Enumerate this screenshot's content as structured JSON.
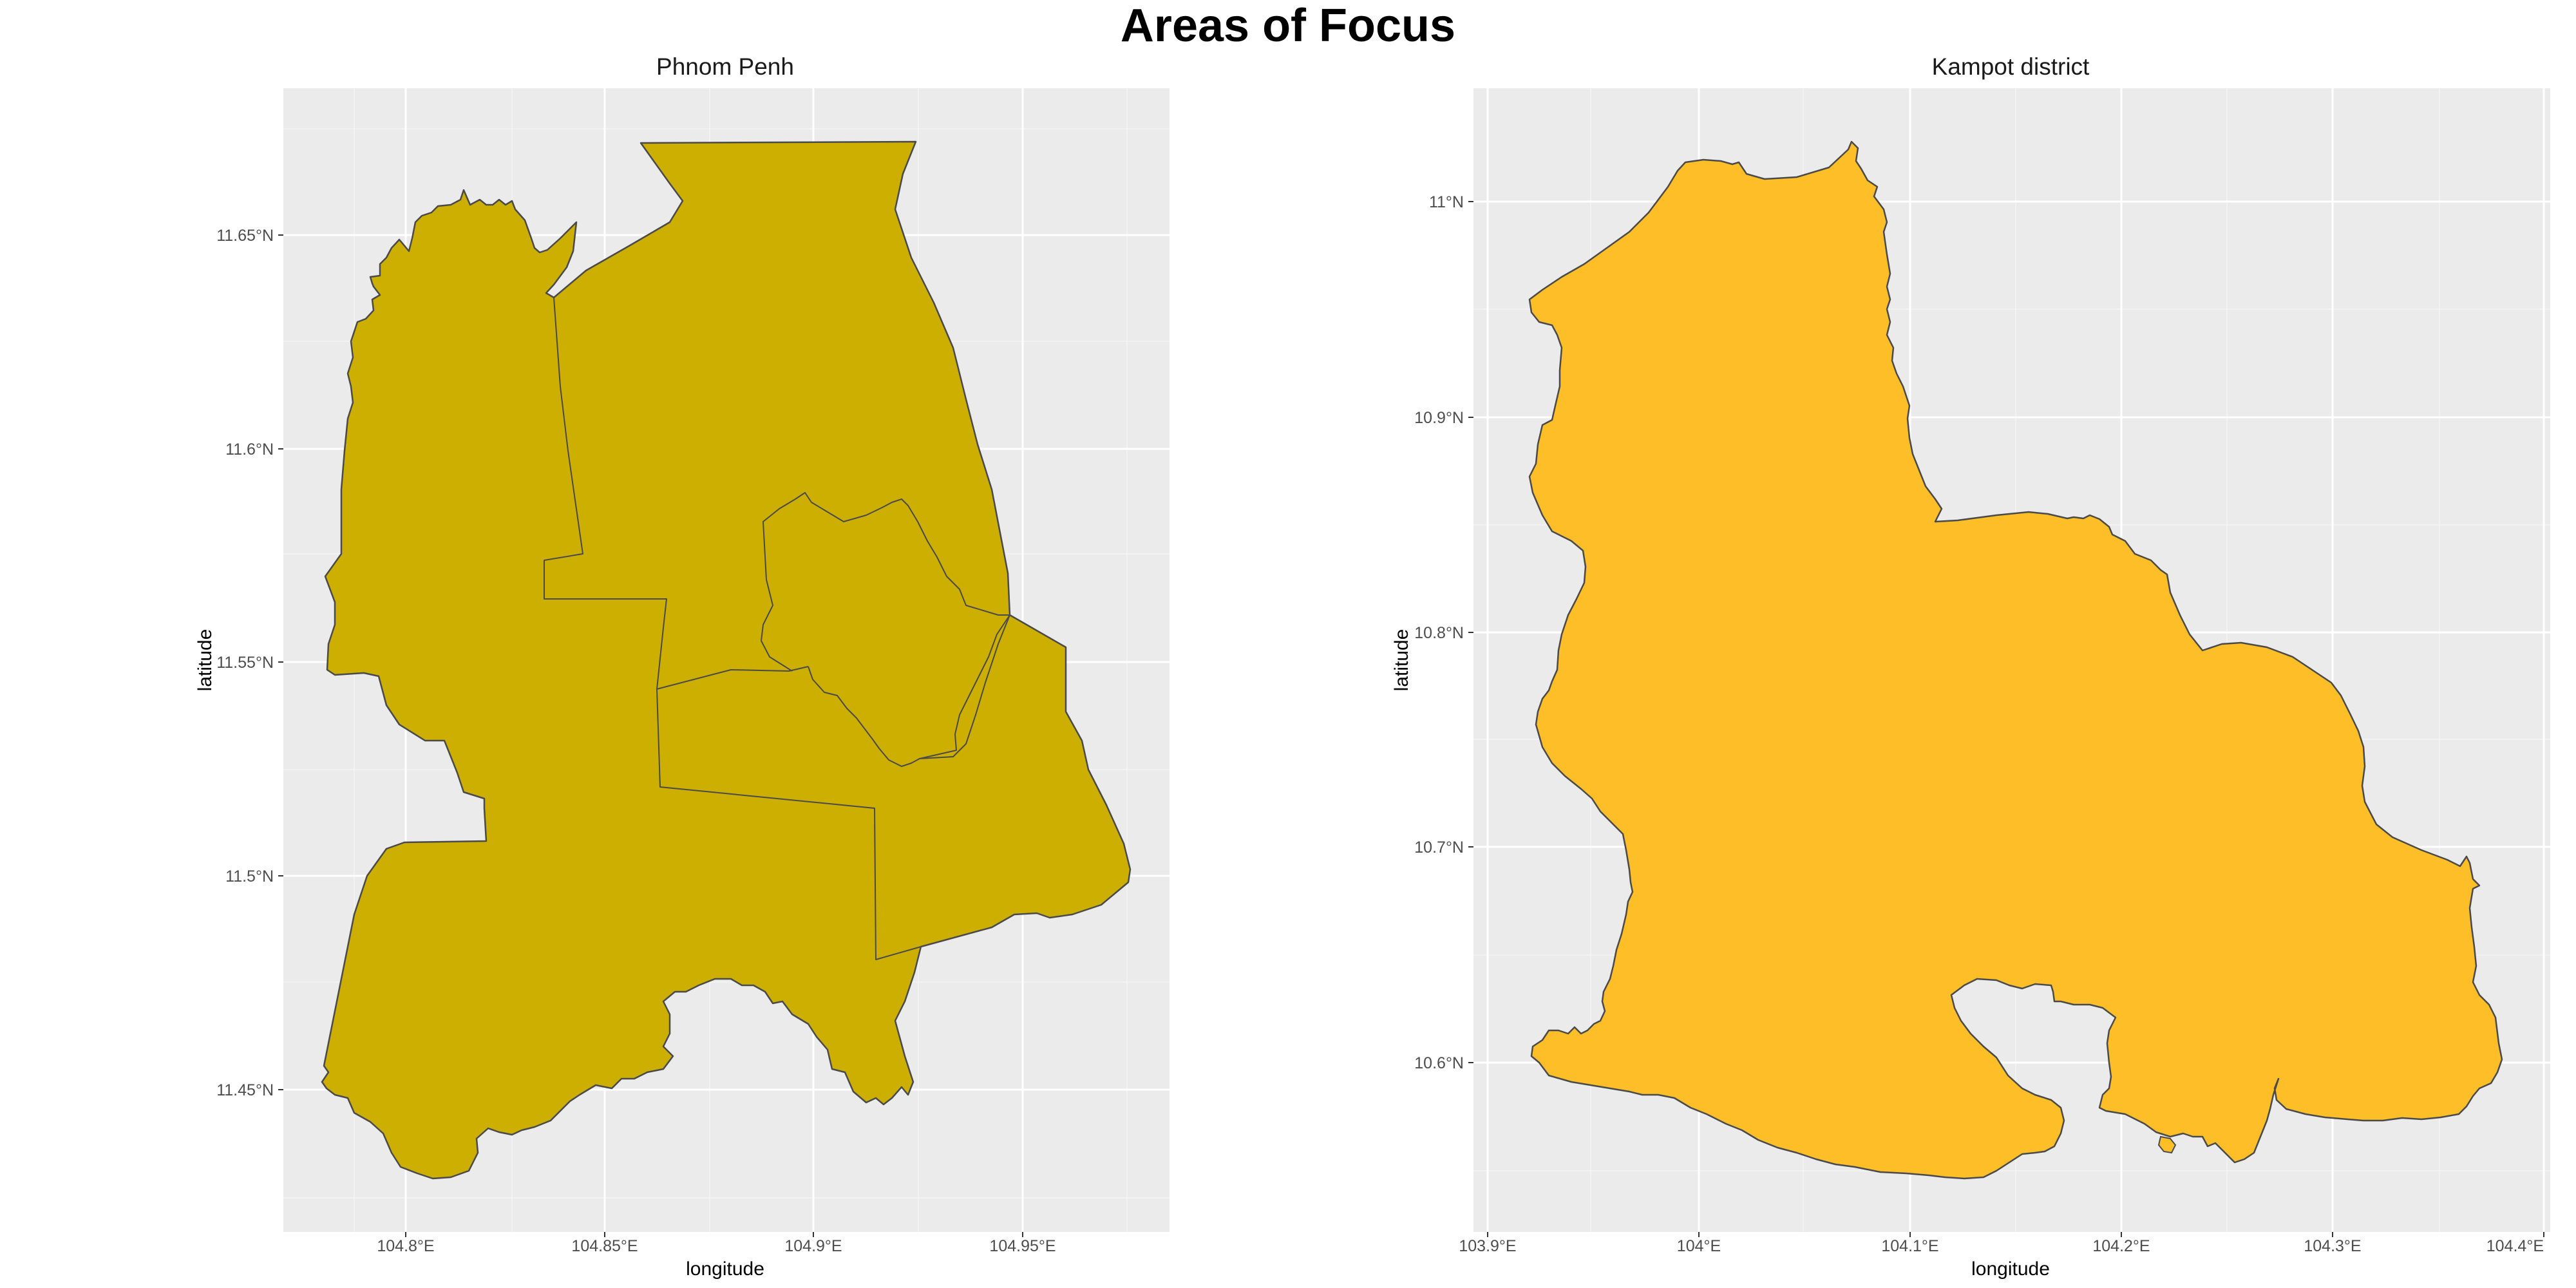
{
  "title": "Areas of Focus",
  "colors": {
    "phnom_penh_fill": "#CCAF00",
    "kampot_fill": "#FDBE28",
    "panel_bg": "#EBEBEB",
    "grid": "#FFFFFF",
    "border": "#4a4a4a"
  },
  "panels": [
    {
      "title": "Phnom Penh",
      "xlabel": "longitude",
      "ylabel": "latitude",
      "x_ticks": [
        "104.8°E",
        "104.85°E",
        "104.9°E",
        "104.95°E"
      ],
      "y_ticks": [
        "11.45°N",
        "11.5°N",
        "11.55°N",
        "11.6°N",
        "11.65°N"
      ]
    },
    {
      "title": "Kampot district",
      "xlabel": "longitude",
      "ylabel": "latitude",
      "x_ticks": [
        "103.9°E",
        "104°E",
        "104.1°E",
        "104.2°E",
        "104.3°E",
        "104.4°E"
      ],
      "y_ticks": [
        "10.6°N",
        "10.7°N",
        "10.8°N",
        "10.9°N",
        "11°N"
      ]
    }
  ]
}
